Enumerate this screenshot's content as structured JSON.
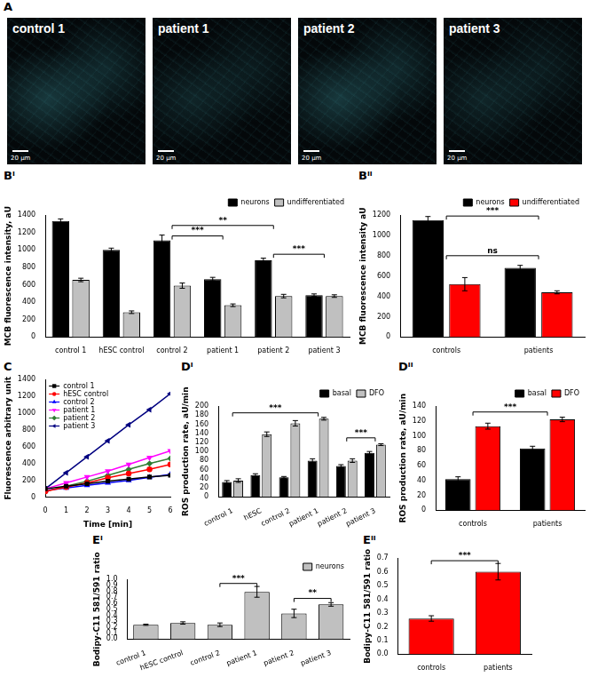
{
  "images": {
    "panel": "A",
    "items": [
      {
        "label": "control 1",
        "scale_bar": "20 μm"
      },
      {
        "label": "patient 1",
        "scale_bar": "20 μm"
      },
      {
        "label": "patient 2",
        "scale_bar": "20 μm"
      },
      {
        "label": "patient 3",
        "scale_bar": "20 μm"
      }
    ]
  },
  "chart_data": [
    {
      "panel": "Bⁱ",
      "type": "bar",
      "categories": [
        "control 1",
        "hESC control",
        "control 2",
        "patient 1",
        "patient 2",
        "patient 3"
      ],
      "series": [
        {
          "name": "neurons",
          "color": "#000000",
          "values": [
            1330,
            1000,
            1110,
            665,
            880,
            480
          ],
          "errors": [
            25,
            20,
            60,
            20,
            25,
            15
          ]
        },
        {
          "name": "undifferentiated",
          "color": "#c0c0c0",
          "values": [
            655,
            285,
            590,
            365,
            470,
            470
          ],
          "errors": [
            20,
            15,
            30,
            15,
            20,
            15
          ]
        }
      ],
      "ylabel": "MCB fluorescence intensity, aU",
      "ylim": [
        0,
        1400
      ],
      "yticks": [
        0,
        200,
        400,
        600,
        800,
        1000,
        1200,
        1400
      ],
      "grid": false,
      "legend": "top",
      "annotations": [
        {
          "text": "***",
          "from": "control 2",
          "to": "patient 1",
          "y": 1160
        },
        {
          "text": "**",
          "from": "control 2",
          "to": "patient 2",
          "y": 1280
        },
        {
          "text": "***",
          "from": "patient 2",
          "to": "patient 3",
          "y": 950
        }
      ]
    },
    {
      "panel": "Bⁱⁱ",
      "type": "bar",
      "categories": [
        "controls",
        "patients"
      ],
      "series": [
        {
          "name": "neurons",
          "color": "#000000",
          "values": [
            1150,
            680
          ],
          "errors": [
            35,
            25
          ]
        },
        {
          "name": "undifferentiated",
          "color": "#ff0000",
          "values": [
            520,
            440
          ],
          "errors": [
            65,
            15
          ]
        }
      ],
      "ylabel": "MCB fluorescence intensity aU",
      "ylim": [
        0,
        1200
      ],
      "yticks": [
        0,
        200,
        400,
        600,
        800,
        1000,
        1200
      ],
      "grid": false,
      "legend": "top",
      "annotations": [
        {
          "text": "***",
          "from": "controls",
          "to": "patients",
          "y": 1190
        },
        {
          "text": "ns",
          "from": "controls",
          "to": "patients",
          "y": 800
        }
      ]
    },
    {
      "panel": "C",
      "type": "line",
      "x": [
        0,
        1,
        2,
        3,
        4,
        5,
        6
      ],
      "series": [
        {
          "name": "control 1",
          "color": "#000000",
          "marker": "square",
          "values": [
            100,
            130,
            160,
            190,
            215,
            240,
            260
          ]
        },
        {
          "name": "hESC control",
          "color": "#ff0000",
          "marker": "circle",
          "values": [
            70,
            120,
            170,
            230,
            280,
            330,
            390
          ]
        },
        {
          "name": "control 2",
          "color": "#0000ff",
          "marker": "triangle",
          "values": [
            80,
            110,
            140,
            170,
            200,
            235,
            270
          ]
        },
        {
          "name": "patient 1",
          "color": "#ff00ff",
          "marker": "triangle_down",
          "values": [
            100,
            170,
            240,
            310,
            390,
            470,
            550
          ]
        },
        {
          "name": "patient 2",
          "color": "#2e7d32",
          "marker": "diamond",
          "values": [
            70,
            130,
            190,
            260,
            330,
            400,
            460
          ]
        },
        {
          "name": "patient 3",
          "color": "#000080",
          "marker": "triangle_left",
          "values": [
            100,
            290,
            480,
            670,
            860,
            1040,
            1230
          ]
        }
      ],
      "xlabel": "Time [min]",
      "ylabel": "Fluorescence arbitrary unit",
      "xlim": [
        0,
        6
      ],
      "xticks": [
        0,
        1,
        2,
        3,
        4,
        5,
        6
      ],
      "ylim": [
        0,
        1400
      ],
      "yticks": [
        0,
        200,
        400,
        600,
        800,
        1000,
        1200,
        1400
      ],
      "grid": false,
      "legend": "upper left"
    },
    {
      "panel": "Dⁱ",
      "type": "bar",
      "categories": [
        "control 1",
        "hESC",
        "control 2",
        "patient 1",
        "patient 2",
        "patient 3"
      ],
      "series": [
        {
          "name": "basal",
          "color": "#000000",
          "values": [
            33,
            48,
            43,
            80,
            68,
            97
          ],
          "errors": [
            3,
            3,
            2,
            4,
            3,
            3
          ]
        },
        {
          "name": "DFO",
          "color": "#c0c0c0",
          "values": [
            36,
            138,
            162,
            172,
            80,
            115
          ],
          "errors": [
            4,
            5,
            6,
            3,
            4,
            2
          ]
        }
      ],
      "ylabel": "ROS production rate, aU/min",
      "ylim": [
        0,
        200
      ],
      "yticks": [
        0,
        20,
        40,
        60,
        80,
        100,
        120,
        140,
        160,
        180,
        200
      ],
      "grid": false,
      "legend": "top",
      "annotations": [
        {
          "text": "***",
          "from": "control 1",
          "to": "patient 1",
          "y": 185
        },
        {
          "text": "***",
          "from": "patient 2",
          "to": "patient 3",
          "y": 130
        }
      ]
    },
    {
      "panel": "Dⁱⁱ",
      "type": "bar",
      "categories": [
        "controls",
        "patients"
      ],
      "series": [
        {
          "name": "basal",
          "color": "#000000",
          "values": [
            42,
            83
          ],
          "errors": [
            3,
            3
          ]
        },
        {
          "name": "DFO",
          "color": "#ff0000",
          "values": [
            113,
            122
          ],
          "errors": [
            4,
            3
          ]
        }
      ],
      "ylabel": "ROS production rate, aU/min",
      "ylim": [
        0,
        140
      ],
      "yticks": [
        0,
        20,
        40,
        60,
        80,
        100,
        120,
        140
      ],
      "grid": false,
      "legend": "top",
      "annotations": [
        {
          "text": "***",
          "from": "controls",
          "to": "patients",
          "y": 132
        }
      ]
    },
    {
      "panel": "Eⁱ",
      "type": "bar",
      "categories": [
        "control 1",
        "hESC control",
        "control 2",
        "patient 1",
        "patient 2",
        "patient 3"
      ],
      "series": [
        {
          "name": "neurons",
          "color": "#c0c0c0",
          "values": [
            0.24,
            0.27,
            0.24,
            0.79,
            0.43,
            0.58
          ],
          "errors": [
            0.01,
            0.02,
            0.03,
            0.09,
            0.07,
            0.03
          ]
        }
      ],
      "ylabel": "Bodipy-C11 581/591 ratio",
      "ylim": [
        0,
        1
      ],
      "yticks": [
        {
          "value": 0,
          "label": "0.0"
        },
        0.1,
        0.2,
        0.3,
        0.4,
        0.5,
        0.6,
        0.7,
        0.8,
        0.9,
        {
          "value": 1,
          "label": "1.0"
        }
      ],
      "grid": false,
      "legend": "top",
      "annotations": [
        {
          "text": "***",
          "from": "control 2",
          "to": "patient 1",
          "y": 0.93
        },
        {
          "text": "**",
          "from": "patient 2",
          "to": "patient 3",
          "y": 0.68
        }
      ]
    },
    {
      "panel": "Eⁱⁱ",
      "type": "bar",
      "categories": [
        "controls",
        "patients"
      ],
      "series": [
        {
          "name": "",
          "color": "#ff0000",
          "values": [
            0.26,
            0.6
          ],
          "errors": [
            0.02,
            0.06
          ]
        }
      ],
      "ylabel": "Bodipy-C11 581/591 ratio",
      "ylim": [
        0,
        0.7
      ],
      "yticks": [
        {
          "value": 0,
          "label": "0.0"
        },
        0.1,
        0.2,
        0.3,
        0.4,
        0.5,
        0.6,
        0.7
      ],
      "grid": false,
      "annotations": [
        {
          "text": "***",
          "from": "controls",
          "to": "patients",
          "y": 0.68
        }
      ]
    }
  ]
}
